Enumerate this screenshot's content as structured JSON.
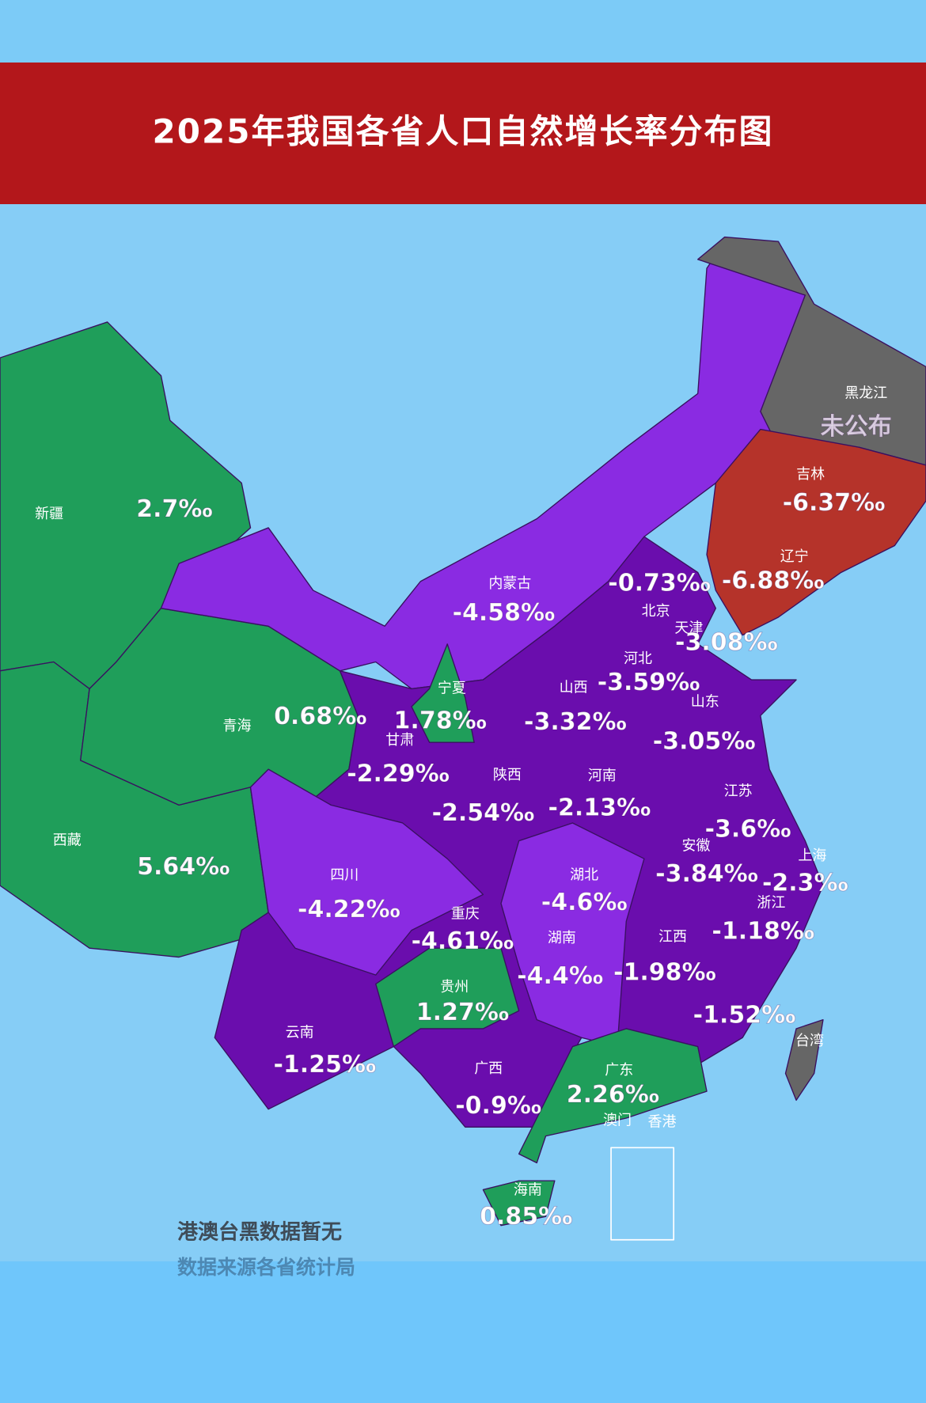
{
  "header": {
    "title": "2025年我国各省人口自然增长率分布图"
  },
  "provinces": [
    {
      "name": "新疆",
      "rate": "2.7‰"
    },
    {
      "name": "西藏",
      "rate": "5.64‰"
    },
    {
      "name": "青海",
      "rate": "0.68‰"
    },
    {
      "name": "内蒙古",
      "rate": "-4.58‰"
    },
    {
      "name": "宁夏",
      "rate": "1.78‰"
    },
    {
      "name": "甘肃",
      "rate": "-2.29‰"
    },
    {
      "name": "陕西",
      "rate": "-2.54‰"
    },
    {
      "name": "山西",
      "rate": "-3.32‰"
    },
    {
      "name": "河北",
      "rate": "-3.59‰"
    },
    {
      "name": "北京",
      "rate": "-0.73‰"
    },
    {
      "name": "天津",
      "rate": "-3.08‰"
    },
    {
      "name": "山东",
      "rate": "-3.05‰"
    },
    {
      "name": "河南",
      "rate": "-2.13‰"
    },
    {
      "name": "江苏",
      "rate": "-3.6‰"
    },
    {
      "name": "安徽",
      "rate": "-3.84‰"
    },
    {
      "name": "上海",
      "rate": "-2.3‰"
    },
    {
      "name": "浙江",
      "rate": "-1.18‰"
    },
    {
      "name": "湖北",
      "rate": "-4.6‰"
    },
    {
      "name": "四川",
      "rate": "-4.22‰"
    },
    {
      "name": "重庆",
      "rate": "-4.61‰"
    },
    {
      "name": "湖南",
      "rate": "-4.4‰"
    },
    {
      "name": "江西",
      "rate": "-1.98‰"
    },
    {
      "rate": "-1.52‰"
    },
    {
      "name": "贵州",
      "rate": "1.27‰"
    },
    {
      "name": "云南",
      "rate": "-1.25‰"
    },
    {
      "name": "广西",
      "rate": "-0.9‰"
    },
    {
      "name": "广东",
      "rate": "2.26‰"
    },
    {
      "name": "海南",
      "rate": "0.85‰"
    },
    {
      "name": "吉林",
      "rate": "-6.37‰"
    },
    {
      "name": "辽宁",
      "rate": "-6.88‰"
    },
    {
      "name": "黑龙江",
      "rate": "未公布"
    },
    {
      "name": "澳门"
    },
    {
      "name": "香港"
    },
    {
      "name": "台湾"
    }
  ],
  "footnotes": [
    "港澳台黑数据暂无",
    "数据来源各省统计局"
  ]
}
